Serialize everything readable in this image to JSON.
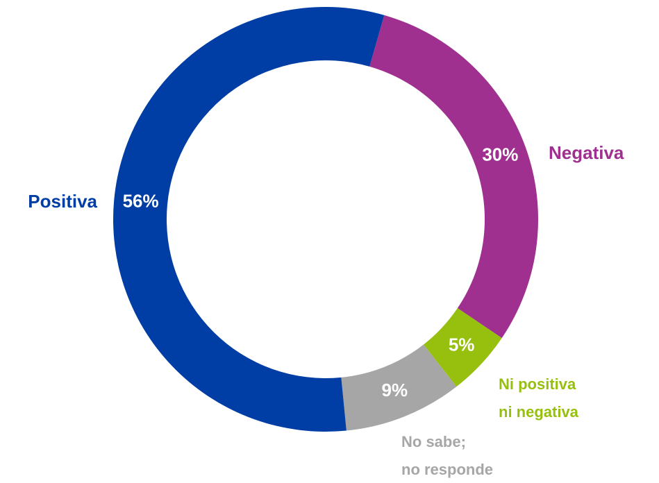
{
  "chart_data": {
    "type": "donut",
    "categories": [
      "Negativa",
      [
        "Ni positiva",
        "ni negativa"
      ],
      [
        "No sabe;",
        "no responde"
      ],
      "Positiva"
    ],
    "values": [
      30,
      5,
      9,
      56
    ],
    "value_labels": [
      "30%",
      "5%",
      "9%",
      "56%"
    ],
    "colors": [
      "#A03090",
      "#97BF0D",
      "#A6A6A6",
      "#003DA5"
    ]
  }
}
